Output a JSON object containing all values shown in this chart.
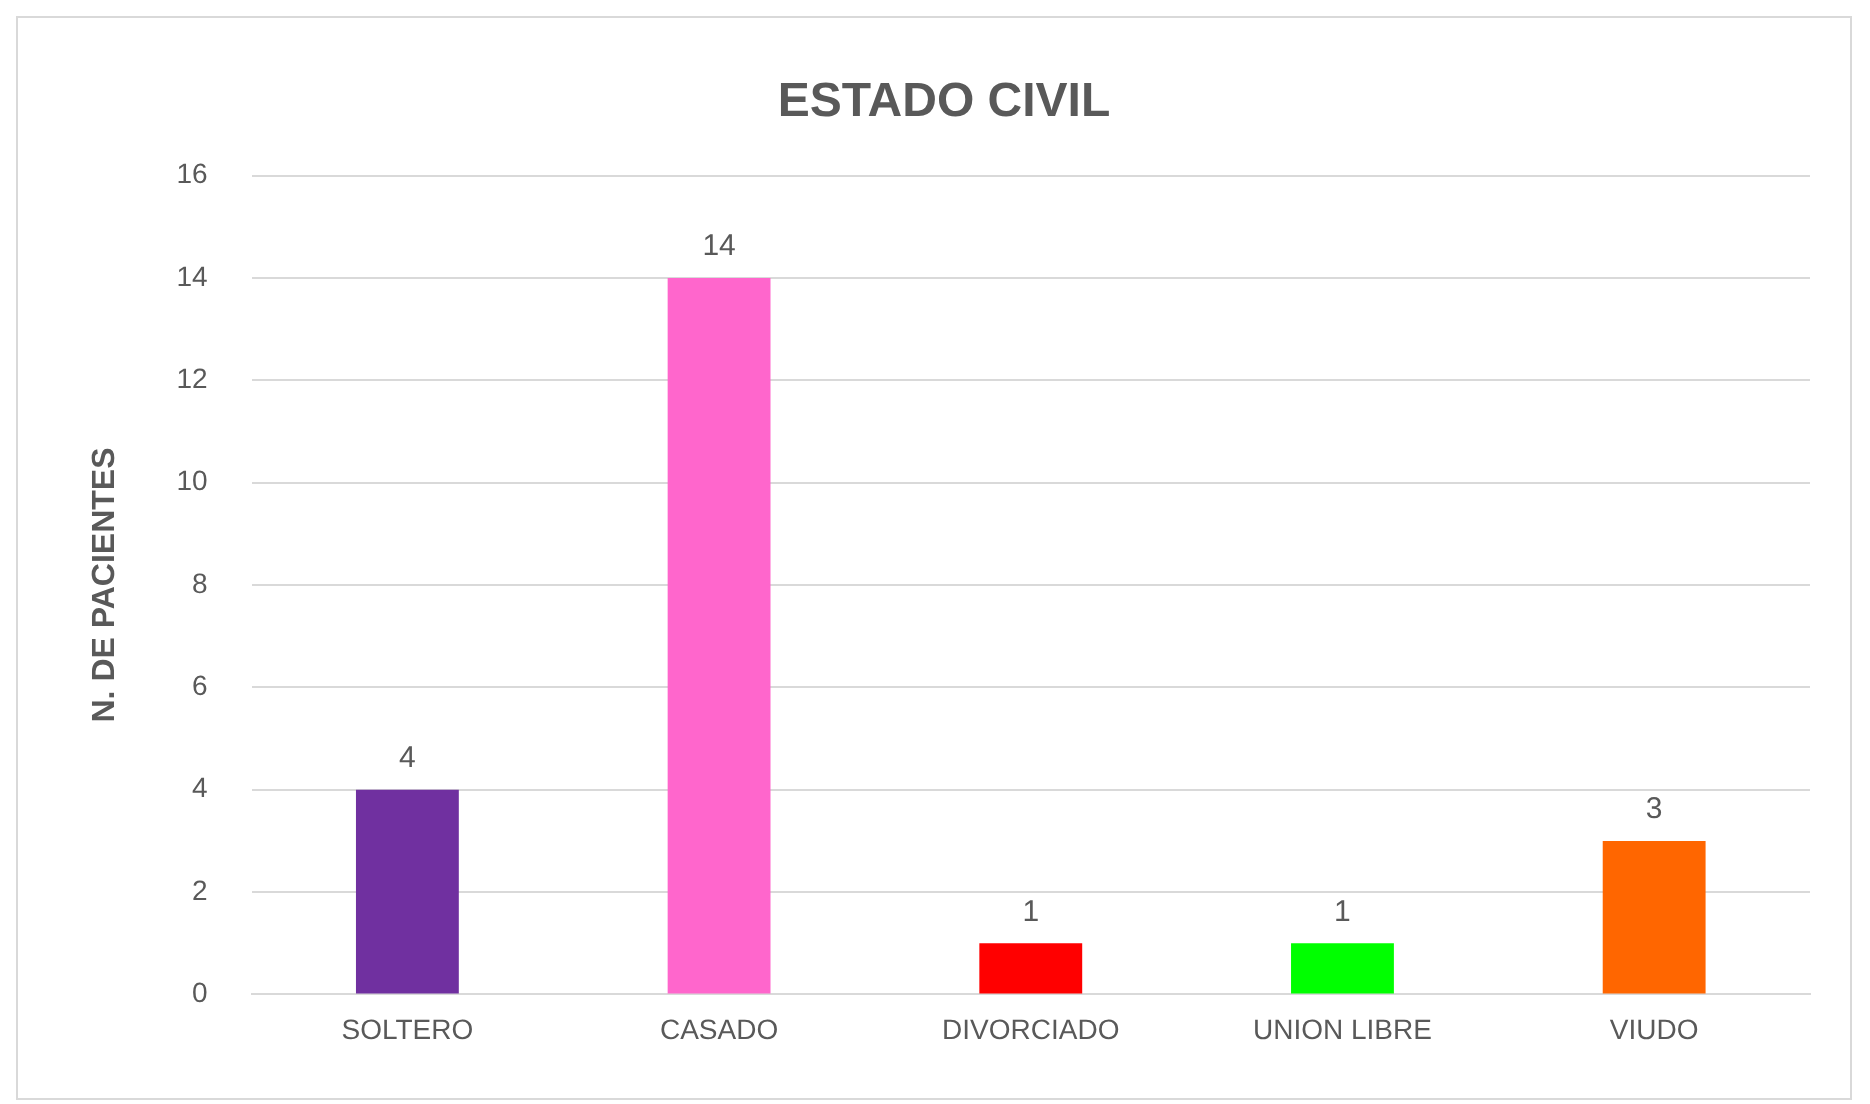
{
  "chart_data": {
    "type": "bar",
    "title": "ESTADO CIVIL",
    "ylabel": "N. DE PACIENTES",
    "categories": [
      "SOLTERO",
      "CASADO",
      "DIVORCIADO",
      "UNION LIBRE",
      "VIUDO"
    ],
    "values": [
      4,
      14,
      1,
      1,
      3
    ],
    "colors": [
      "#7030a0",
      "#ff66cc",
      "#ff0000",
      "#00ff00",
      "#ff6600"
    ],
    "ylim": [
      0,
      16
    ],
    "yticks": [
      0,
      2,
      4,
      6,
      8,
      10,
      12,
      14,
      16
    ],
    "grid": "y",
    "legend": false,
    "data_labels": true
  }
}
